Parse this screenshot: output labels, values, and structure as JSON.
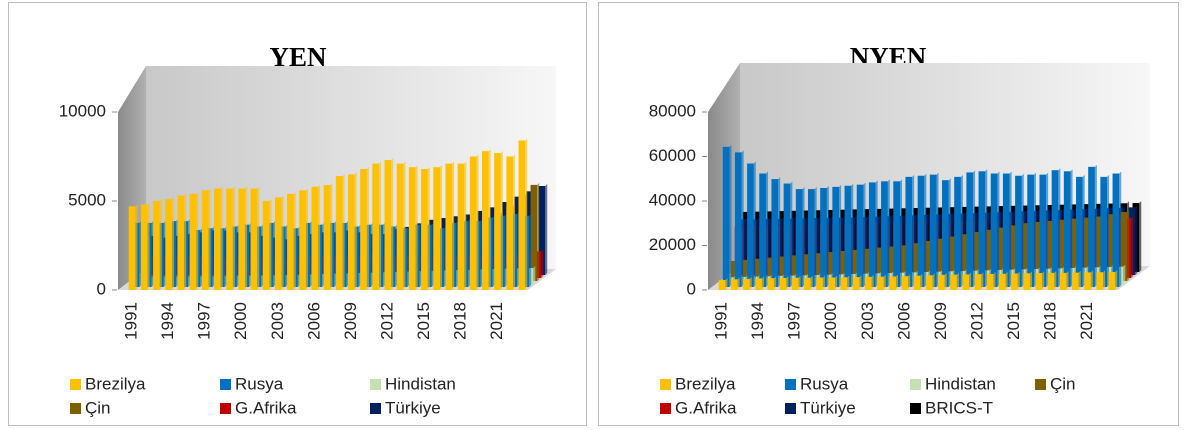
{
  "chart_data": [
    {
      "type": "bar",
      "title": "YEN",
      "categories": [
        "1991",
        null,
        null,
        "1994",
        null,
        null,
        "1997",
        null,
        null,
        "2000",
        null,
        null,
        "2003",
        null,
        null,
        "2006",
        null,
        null,
        "2009",
        null,
        null,
        "2012",
        null,
        null,
        "2015",
        null,
        null,
        "2018",
        null,
        null,
        "2021",
        null,
        null
      ],
      "series": [
        {
          "name": "Brezilya",
          "color": "#ffc000",
          "values": [
            4700,
            4800,
            5000,
            5100,
            5300,
            5400,
            5600,
            5700,
            5700,
            5700,
            5700,
            5000,
            5200,
            5400,
            5600,
            5800,
            5900,
            6400,
            6500,
            6800,
            7100,
            7300,
            7100,
            6900,
            6800,
            6900,
            7100,
            7100,
            7500,
            7800,
            7700,
            7500,
            8400
          ]
        },
        {
          "name": "Rusya",
          "color": "#0070c0",
          "values": [
            3600,
            3600,
            3600,
            3700,
            3700,
            3200,
            3300,
            3300,
            3400,
            3500,
            3400,
            3600,
            3400,
            3300,
            3600,
            3500,
            3600,
            3600,
            3400,
            3500,
            3500,
            3400,
            3300,
            3500,
            3500,
            3300,
            3600,
            3700,
            3700,
            3900,
            4000,
            4100,
            4000
          ]
        },
        {
          "name": "Hindistan",
          "color": "#c6e0b4",
          "values": [
            350,
            360,
            370,
            380,
            400,
            410,
            420,
            430,
            440,
            450,
            460,
            480,
            500,
            520,
            540,
            560,
            580,
            600,
            620,
            640,
            660,
            680,
            700,
            720,
            740,
            760,
            780,
            800,
            820,
            840,
            860,
            880,
            900
          ]
        },
        {
          "name": "Çin",
          "color": "#7f6000",
          "values": [
            300,
            330,
            360,
            400,
            440,
            480,
            520,
            560,
            600,
            650,
            700,
            760,
            820,
            880,
            950,
            1050,
            1150,
            1300,
            1450,
            1600,
            1800,
            2000,
            2200,
            2400,
            2600,
            2800,
            3000,
            3200,
            3500,
            3800,
            4200,
            4800,
            5400
          ]
        },
        {
          "name": "G.Afrika",
          "color": "#c00000",
          "values": [
            1200,
            1200,
            1200,
            1150,
            1150,
            1150,
            1100,
            1100,
            1100,
            1100,
            1100,
            1100,
            1150,
            1150,
            1200,
            1200,
            1250,
            1250,
            1200,
            1200,
            1250,
            1250,
            1250,
            1250,
            1250,
            1200,
            1200,
            1250,
            1250,
            1200,
            1300,
            1400,
            1500
          ]
        },
        {
          "name": "Türkiye",
          "color": "#002060",
          "values": [
            2200,
            2100,
            2200,
            2300,
            2400,
            2500,
            2500,
            2400,
            2400,
            2200,
            2100,
            2000,
            2200,
            2300,
            2400,
            2400,
            2500,
            2400,
            2300,
            2300,
            2600,
            2700,
            2900,
            3100,
            3200,
            3300,
            3400,
            3600,
            3800,
            4100,
            4400,
            4700,
            5000
          ]
        }
      ],
      "ylim": [
        0,
        10000
      ],
      "yticks": [
        0,
        5000,
        10000
      ]
    },
    {
      "type": "bar",
      "title": "NYEN",
      "categories": [
        "1991",
        null,
        null,
        "1994",
        null,
        null,
        "1997",
        null,
        null,
        "2000",
        null,
        null,
        "2003",
        null,
        null,
        "2006",
        null,
        null,
        "2009",
        null,
        null,
        "2012",
        null,
        null,
        "2015",
        null,
        null,
        "2018",
        null,
        null,
        "2021",
        null,
        null
      ],
      "series": [
        {
          "name": "Brezilya",
          "color": "#ffc000",
          "values": [
            4500,
            4800,
            5000,
            5200,
            5300,
            5400,
            5500,
            5500,
            5600,
            5600,
            5700,
            5800,
            5900,
            6000,
            6100,
            6200,
            6400,
            6600,
            6800,
            6900,
            7000,
            7100,
            7200,
            7300,
            7400,
            7500,
            7600,
            7700,
            7700,
            7800,
            7900,
            8000,
            8100
          ]
        },
        {
          "name": "Rusya",
          "color": "#0070c0",
          "values": [
            63000,
            60500,
            55500,
            51000,
            48500,
            46500,
            44000,
            44000,
            44500,
            45000,
            45500,
            46000,
            47000,
            47500,
            47500,
            49500,
            50000,
            50500,
            48000,
            49500,
            51500,
            52000,
            51000,
            51000,
            50000,
            50500,
            50500,
            52500,
            52000,
            49500,
            54000,
            49500,
            51000
          ]
        },
        {
          "name": "Hindistan",
          "color": "#c6e0b4",
          "values": [
            3000,
            3150,
            3300,
            3450,
            3600,
            3750,
            3900,
            4050,
            4200,
            4350,
            4500,
            4650,
            4800,
            4950,
            5100,
            5250,
            5400,
            5550,
            5700,
            5850,
            6000,
            6150,
            6300,
            6450,
            6600,
            6750,
            6900,
            7050,
            7200,
            7350,
            7500,
            7650,
            7800
          ]
        },
        {
          "name": "Çin",
          "color": "#7f6000",
          "values": [
            9000,
            9500,
            10000,
            10500,
            11000,
            11500,
            12000,
            12500,
            13000,
            13500,
            14000,
            14500,
            15000,
            15500,
            16000,
            17000,
            18000,
            19000,
            20000,
            21000,
            22000,
            23000,
            24000,
            25000,
            26000,
            26500,
            27000,
            27500,
            28000,
            28500,
            29000,
            30000,
            31000
          ]
        },
        {
          "name": "G.Afrika",
          "color": "#c00000",
          "values": [
            23000,
            23125,
            23250,
            23375,
            23500,
            23625,
            23750,
            23875,
            24000,
            24125,
            24250,
            24375,
            24500,
            24625,
            24750,
            24875,
            25000,
            25125,
            25250,
            25375,
            25500,
            25625,
            25750,
            25875,
            26000,
            26125,
            26250,
            26375,
            26500,
            26625,
            26750,
            26875,
            27000
          ]
        },
        {
          "name": "Türkiye",
          "color": "#002060",
          "values": [
            25000,
            25000,
            25200,
            25200,
            25400,
            25400,
            25600,
            25600,
            25800,
            25800,
            26000,
            26200,
            26400,
            26600,
            26800,
            27000,
            27200,
            27400,
            27600,
            27800,
            28000,
            28200,
            28400,
            28600,
            28800,
            29000,
            29200,
            29400,
            29600,
            29800,
            30000,
            30200,
            30400
          ]
        },
        {
          "name": "BRICS-T",
          "color": "#000000",
          "values": [
            27000,
            27125,
            27250,
            27375,
            27500,
            27625,
            27750,
            27875,
            28000,
            28125,
            28250,
            28375,
            28500,
            28625,
            28750,
            28875,
            29000,
            29125,
            29250,
            29375,
            29500,
            29625,
            29750,
            29875,
            30000,
            30125,
            30250,
            30375,
            30500,
            30625,
            30750,
            30875,
            31000
          ]
        }
      ],
      "ylim": [
        0,
        80000
      ],
      "yticks": [
        0,
        20000,
        40000,
        60000,
        80000
      ]
    }
  ]
}
